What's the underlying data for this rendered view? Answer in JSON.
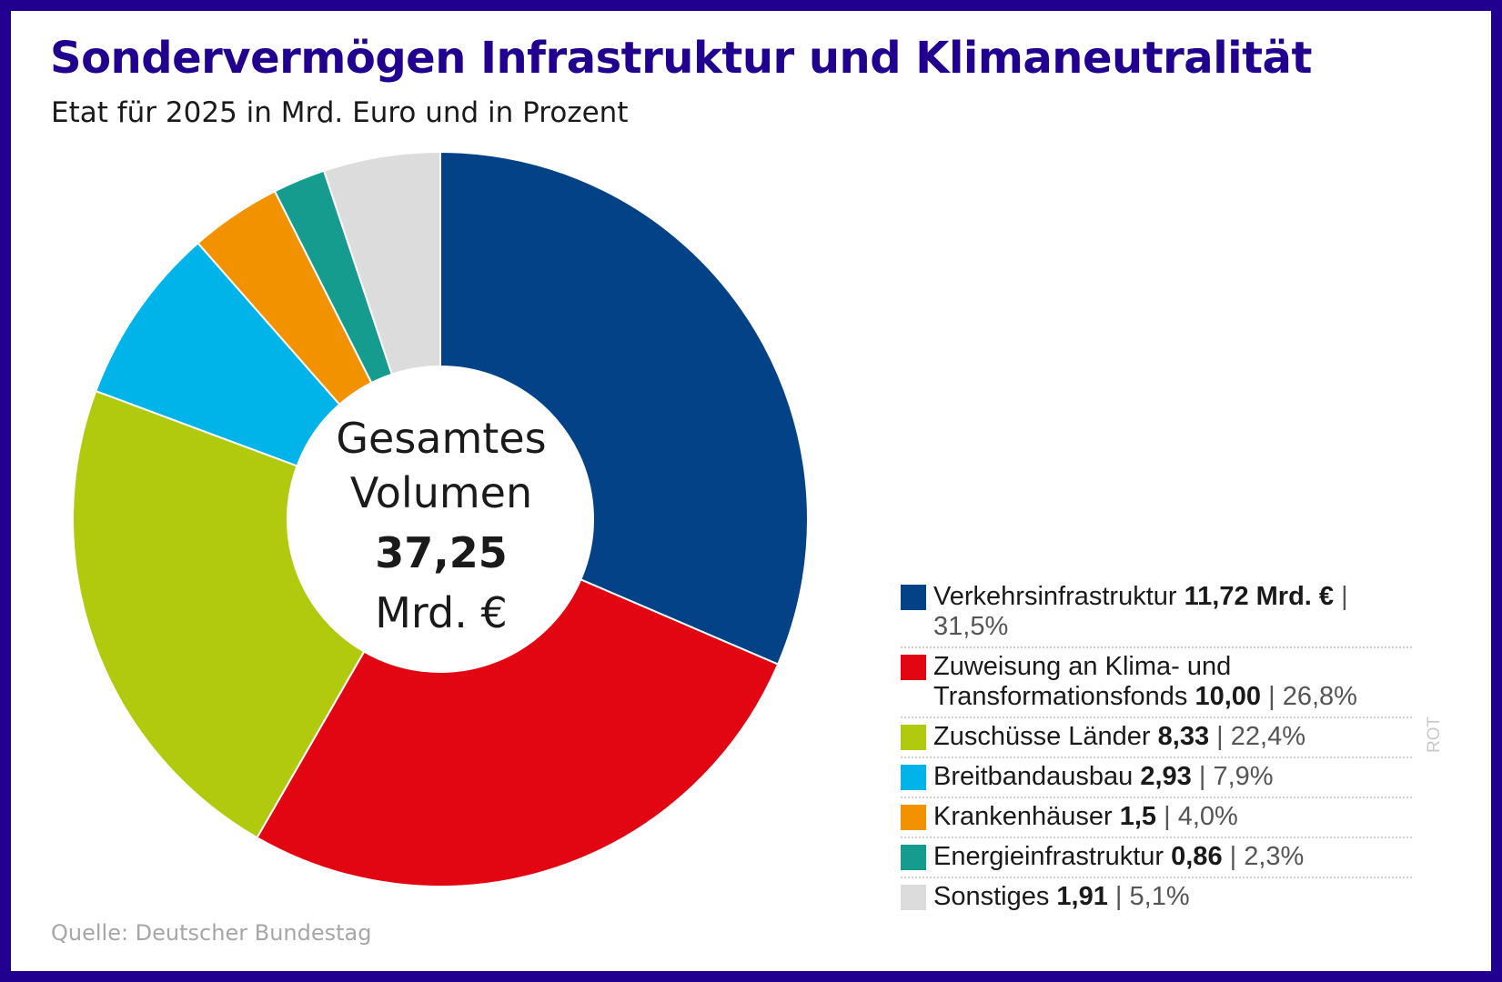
{
  "title": "Sondervermögen Infrastruktur und Klimaneutralität",
  "subtitle": "Etat für 2025 in Mrd. Euro und in Prozent",
  "source": "Quelle: Deutscher Bundestag",
  "credit": "ROT",
  "colors": {
    "frame": "#22008f",
    "title": "#22008f"
  },
  "center": {
    "line1": "Gesamtes",
    "line2": "Volumen",
    "total": "37,25",
    "unit": "Mrd. €"
  },
  "chart_data": {
    "type": "pie",
    "variant": "donut",
    "title": "Sondervermögen Infrastruktur und Klimaneutralität",
    "subtitle": "Etat für 2025 in Mrd. Euro und in Prozent",
    "total": 37.25,
    "legend_position": "right",
    "start_angle_deg": 0,
    "direction": "clockwise",
    "slices": [
      {
        "label": "Verkehrsinfrastruktur",
        "label_line2": "",
        "value": 11.72,
        "value_text": "11,72 Mrd. €",
        "percent": 31.5,
        "percent_text": "31,5%",
        "color": "#034287"
      },
      {
        "label": "Zuweisung an Klima- und",
        "label_line2": "Transformationsfonds",
        "value": 10.0,
        "value_text": "10,00",
        "percent": 26.8,
        "percent_text": "26,8%",
        "color": "#e20613"
      },
      {
        "label": "Zuschüsse Länder",
        "label_line2": "",
        "value": 8.33,
        "value_text": "8,33",
        "percent": 22.4,
        "percent_text": "22,4%",
        "color": "#b1ca0e"
      },
      {
        "label": "Breitbandausbau",
        "label_line2": "",
        "value": 2.93,
        "value_text": "2,93",
        "percent": 7.9,
        "percent_text": "7,9%",
        "color": "#00b3e9"
      },
      {
        "label": "Krankenhäuser",
        "label_line2": "",
        "value": 1.5,
        "value_text": "1,5",
        "percent": 4.0,
        "percent_text": "4,0%",
        "color": "#f39200"
      },
      {
        "label": "Energieinfrastruktur",
        "label_line2": "",
        "value": 0.86,
        "value_text": "0,86",
        "percent": 2.3,
        "percent_text": "2,3%",
        "color": "#159c8f"
      },
      {
        "label": "Sonstiges",
        "label_line2": "",
        "value": 1.91,
        "value_text": "1,91",
        "percent": 5.1,
        "percent_text": "5,1%",
        "color": "#dcdcdc"
      }
    ]
  }
}
